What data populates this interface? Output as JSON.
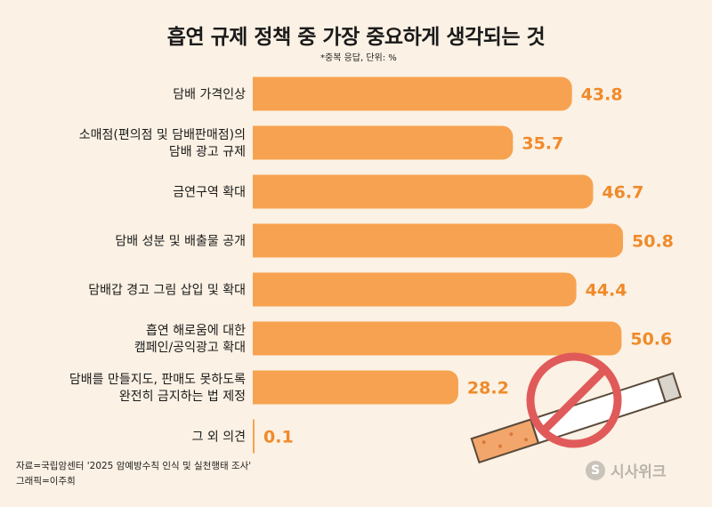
{
  "chart_data": {
    "type": "bar",
    "orientation": "horizontal",
    "title": "흡연 규제 정책 중 가장 중요하게 생각되는 것",
    "note": "*중복 응답, 단위: %",
    "categories": [
      [
        "담배 가격인상"
      ],
      [
        "소매점(편의점 및 담배판매점)의",
        "담배 광고 규제"
      ],
      [
        "금연구역 확대"
      ],
      [
        "담배 성분 및 배출물 공개"
      ],
      [
        "담배갑 경고 그림 삽입 및 확대"
      ],
      [
        "흡연 해로움에 대한",
        "캠페인/공익광고 확대"
      ],
      [
        "담배를 만들지도, 판매도 못하도록",
        "완전히 금지하는 법 제정"
      ],
      [
        "그 외 의견"
      ]
    ],
    "values": [
      43.8,
      35.7,
      46.7,
      50.8,
      44.4,
      50.6,
      28.2,
      0.1
    ],
    "value_labels": [
      "43.8",
      "35.7",
      "46.7",
      "50.8",
      "44.4",
      "50.6",
      "28.2",
      "0.1"
    ],
    "xlim": [
      0,
      50.8
    ],
    "colors": {
      "bar": "#f7a250",
      "value": "#f08a2a",
      "background": "#fbf1e4"
    }
  },
  "source": "자료=국립암센터 '2025 암예방수칙 인식 및 실천행태 조사'",
  "credit": "그래픽=이주희",
  "watermark": {
    "logo": "S",
    "text": "시사위크"
  },
  "icons": {
    "illustration": "no-smoking-cigarette-icon"
  }
}
